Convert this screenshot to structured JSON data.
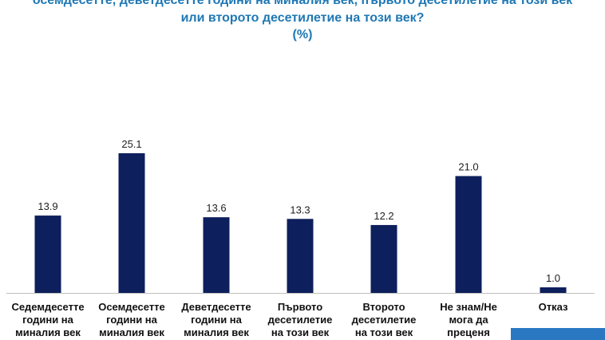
{
  "title_lines": [
    "осемдесетте, деветдесетте години на миналия век, първото десетилетие на този век",
    "или второто десетилетие на този век?",
    "(%)"
  ],
  "chart_data": {
    "type": "bar",
    "categories": [
      [
        "Седемдесетте",
        "години на",
        "миналия век"
      ],
      [
        "Осемдесетте",
        "години на",
        "миналия век"
      ],
      [
        "Деветдесетте",
        "години на",
        "миналия век"
      ],
      [
        "Първото",
        "десетилетие",
        "на този век"
      ],
      [
        "Второто",
        "десетилетие",
        "на този век"
      ],
      [
        "Не знам/Не",
        "мога да",
        "преценя"
      ],
      [
        "Отказ"
      ]
    ],
    "values": [
      13.9,
      25.1,
      13.6,
      13.3,
      12.2,
      21.0,
      1.0
    ],
    "value_labels": [
      "13.9",
      "25.1",
      "13.6",
      "13.3",
      "12.2",
      "21.0",
      "1.0"
    ],
    "ylim": [
      0,
      25.1
    ],
    "grid": false,
    "bar_color": "#0d1f5c"
  },
  "colors": {
    "title": "#1f78b4",
    "axis": "#bfbfbf",
    "corner_block": "#2a78c2"
  }
}
